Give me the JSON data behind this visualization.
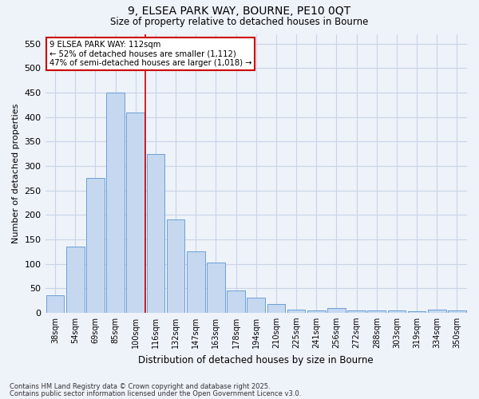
{
  "title_line1": "9, ELSEA PARK WAY, BOURNE, PE10 0QT",
  "title_line2": "Size of property relative to detached houses in Bourne",
  "xlabel": "Distribution of detached houses by size in Bourne",
  "ylabel": "Number of detached properties",
  "categories": [
    "38sqm",
    "54sqm",
    "69sqm",
    "85sqm",
    "100sqm",
    "116sqm",
    "132sqm",
    "147sqm",
    "163sqm",
    "178sqm",
    "194sqm",
    "210sqm",
    "225sqm",
    "241sqm",
    "256sqm",
    "272sqm",
    "288sqm",
    "303sqm",
    "319sqm",
    "334sqm",
    "350sqm"
  ],
  "values": [
    35,
    135,
    275,
    450,
    410,
    325,
    190,
    125,
    103,
    46,
    30,
    18,
    7,
    5,
    10,
    4,
    5,
    4,
    3,
    6,
    5
  ],
  "bar_color": "#c5d8f0",
  "bar_edge_color": "#6a9fd8",
  "grid_color": "#c8d4e8",
  "vline_x_index": 5,
  "vline_color": "#cc0000",
  "annotation_text": "9 ELSEA PARK WAY: 112sqm\n← 52% of detached houses are smaller (1,112)\n47% of semi-detached houses are larger (1,018) →",
  "annotation_box_edge": "#cc0000",
  "ylim": [
    0,
    570
  ],
  "yticks": [
    0,
    50,
    100,
    150,
    200,
    250,
    300,
    350,
    400,
    450,
    500,
    550
  ],
  "footer_line1": "Contains HM Land Registry data © Crown copyright and database right 2025.",
  "footer_line2": "Contains public sector information licensed under the Open Government Licence v3.0.",
  "bg_color": "#eef2f9"
}
